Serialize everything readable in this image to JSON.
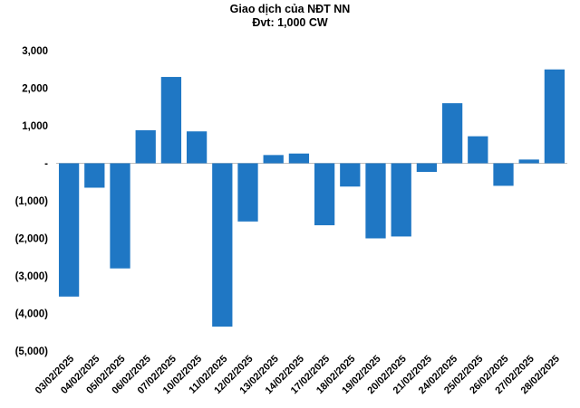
{
  "chart_data": {
    "type": "bar",
    "title": "Giao dịch của NĐT NN",
    "subtitle": "Đvt: 1,000 CW",
    "xlabel": "",
    "ylabel": "",
    "categories": [
      "03/02/2025",
      "04/02/2025",
      "05/02/2025",
      "06/02/2025",
      "07/02/2025",
      "10/02/2025",
      "11/02/2025",
      "12/02/2025",
      "13/02/2025",
      "14/02/2025",
      "17/02/2025",
      "18/02/2025",
      "19/02/2025",
      "20/02/2025",
      "21/02/2025",
      "24/02/2025",
      "25/02/2025",
      "26/02/2025",
      "27/02/2025",
      "28/02/2025"
    ],
    "values": [
      -3550,
      -650,
      -2800,
      880,
      2300,
      850,
      -4350,
      -1550,
      220,
      260,
      -1650,
      -620,
      -2000,
      -1950,
      -230,
      1600,
      720,
      -600,
      100,
      2500
    ],
    "ylim": [
      -5000,
      3000
    ],
    "yticks": [
      3000,
      2000,
      1000,
      0,
      -1000,
      -2000,
      -3000,
      -4000,
      -5000
    ],
    "ytick_labels": [
      "3,000",
      "2,000",
      "1,000",
      "-",
      "(1,000)",
      "(2,000)",
      "(3,000)",
      "(4,000)",
      "(5,000)"
    ],
    "grid": false,
    "legend": "none",
    "bar_color": "#1F77C4"
  }
}
